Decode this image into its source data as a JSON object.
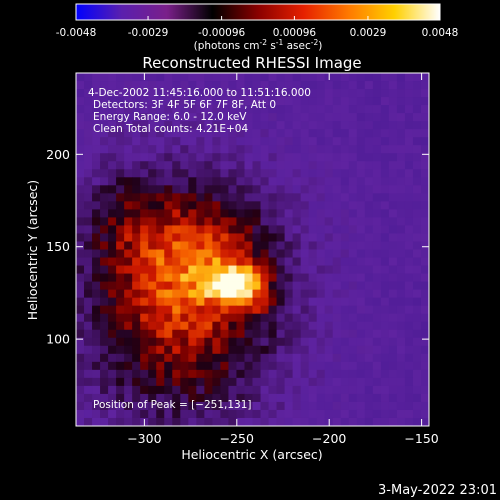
{
  "colorbar": {
    "ticks": [
      "-0.0048",
      "-0.0029",
      "-0.00096",
      "0.00096",
      "0.0029",
      "0.0048"
    ],
    "tick_values": [
      -0.0048,
      -0.0029,
      -0.00096,
      0.00096,
      0.0029,
      0.0048
    ],
    "range": [
      -0.0048,
      0.0048
    ],
    "unit_prefix": "(photons cm",
    "unit_exp1": "-2",
    "unit_mid": " s",
    "unit_exp2": "-1",
    "unit_asec": " asec",
    "unit_exp3": "-2",
    "unit_suffix": ")",
    "colors": [
      "#0000ff",
      "#5a1fae",
      "#7a1f8a",
      "#000000",
      "#8a0000",
      "#e62000",
      "#ff7a00",
      "#ffd000",
      "#ffffff"
    ]
  },
  "chart_data": {
    "type": "heatmap",
    "title": "Reconstructed RHESSI Image",
    "xlabel": "Heliocentric X (arcsec)",
    "ylabel": "Heliocentric Y (arcsec)",
    "xlim": [
      -337,
      -146
    ],
    "ylim": [
      53,
      244
    ],
    "xticks": [
      -300,
      -250,
      -200,
      -150
    ],
    "xtick_labels": [
      "−300",
      "−250",
      "−200",
      "−150"
    ],
    "yticks": [
      100,
      150,
      200
    ],
    "ytick_labels": [
      "100",
      "150",
      "200"
    ],
    "peak": [
      -251,
      131
    ],
    "annotations": [
      "4-Dec-2002 11:45:16.000 to 11:51:16.000",
      "Detectors: 3F 4F 5F 6F 7F 8F, Att 0",
      "Energy Range: 6.0 - 12.0 keV",
      "Clean    Total counts: 4.21E+04"
    ],
    "peak_label": "Position of Peak = [−251,131]"
  },
  "footer": {
    "timestamp": "3-May-2022 23:01"
  }
}
